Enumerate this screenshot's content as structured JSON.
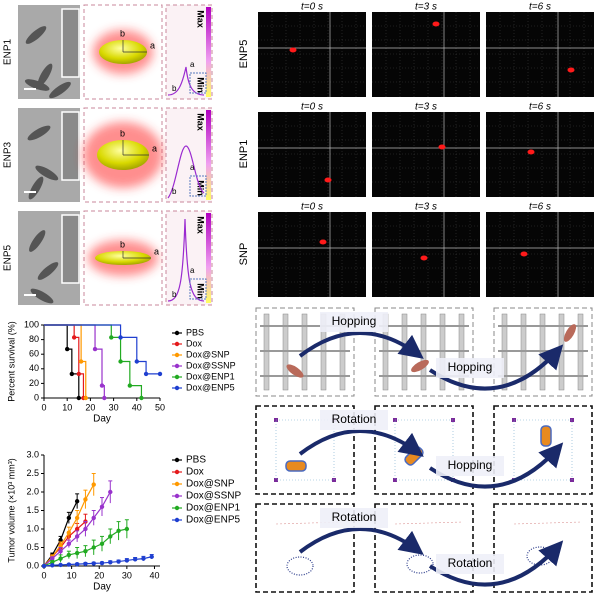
{
  "particles": {
    "rows": [
      "ENP1",
      "ENP3",
      "ENP5"
    ],
    "max": "Max",
    "min": "Min",
    "axis_a": "a",
    "axis_b": "b"
  },
  "tracking": {
    "rows": [
      "ENP5",
      "ENP1",
      "SNP"
    ],
    "times": [
      "t=0 s",
      "t=3 s",
      "t=6 s"
    ]
  },
  "mechanisms": [
    {
      "labels": [
        "Hopping",
        "Hopping"
      ]
    },
    {
      "labels": [
        "Rotation",
        "Hopping"
      ]
    },
    {
      "labels": [
        "Rotation",
        "Rotation"
      ]
    }
  ],
  "chart_data": [
    {
      "type": "step",
      "xlabel": "Day",
      "ylabel": "Percent survival (%)",
      "xlim": [
        0,
        50
      ],
      "xticks": [
        0,
        10,
        20,
        30,
        40,
        50
      ],
      "ylim": [
        0,
        100
      ],
      "yticks": [
        0,
        20,
        40,
        60,
        80,
        100
      ],
      "series": [
        {
          "name": "PBS",
          "color": "#000000",
          "x": [
            0,
            10,
            12,
            15
          ],
          "values": [
            100,
            67,
            33,
            0
          ]
        },
        {
          "name": "Dox",
          "color": "#e41a1c",
          "x": [
            0,
            13,
            15,
            17
          ],
          "values": [
            100,
            83,
            33,
            0
          ]
        },
        {
          "name": "Dox@SNP",
          "color": "#ff9900",
          "x": [
            0,
            16,
            18
          ],
          "values": [
            100,
            50,
            0
          ]
        },
        {
          "name": "Dox@SSNP",
          "color": "#9933cc",
          "x": [
            0,
            22,
            25,
            26
          ],
          "values": [
            100,
            67,
            17,
            0
          ]
        },
        {
          "name": "Dox@ENP1",
          "color": "#22aa22",
          "x": [
            0,
            29,
            33,
            37,
            42
          ],
          "values": [
            100,
            83,
            50,
            17,
            0
          ]
        },
        {
          "name": "Dox@ENP5",
          "color": "#1f3fd0",
          "x": [
            0,
            33,
            40,
            44,
            50
          ],
          "values": [
            100,
            83,
            50,
            33,
            33
          ]
        }
      ]
    },
    {
      "type": "line",
      "xlabel": "Day",
      "ylabel": "Tumor volume (×10³ mm³)",
      "xlim": [
        0,
        42
      ],
      "xticks": [
        0,
        10,
        20,
        30,
        40
      ],
      "ylim": [
        0,
        3
      ],
      "yticks": [
        {
          "value": 0,
          "label": "0.0"
        },
        0.5,
        {
          "value": 1,
          "label": "1.0"
        },
        1.5,
        {
          "value": 2,
          "label": "2.0"
        },
        2.5,
        {
          "value": 3,
          "label": "3.0"
        }
      ],
      "series": [
        {
          "name": "PBS",
          "color": "#000000",
          "x": [
            0,
            3,
            6,
            9,
            12
          ],
          "values": [
            0,
            0.3,
            0.7,
            1.3,
            1.75
          ],
          "errors": [
            0,
            0.05,
            0.1,
            0.15,
            0.2
          ]
        },
        {
          "name": "Dox",
          "color": "#e41a1c",
          "x": [
            0,
            3,
            6,
            9,
            12,
            15
          ],
          "values": [
            0,
            0.25,
            0.5,
            0.8,
            1.0,
            1.2
          ],
          "errors": [
            0,
            0.05,
            0.1,
            0.1,
            0.15,
            0.2
          ]
        },
        {
          "name": "Dox@SNP",
          "color": "#ff9900",
          "x": [
            0,
            3,
            6,
            9,
            12,
            15,
            18
          ],
          "values": [
            0,
            0.25,
            0.55,
            0.9,
            1.3,
            1.8,
            2.2
          ],
          "errors": [
            0,
            0.05,
            0.1,
            0.15,
            0.2,
            0.25,
            0.3
          ]
        },
        {
          "name": "Dox@SSNP",
          "color": "#9933cc",
          "x": [
            0,
            3,
            6,
            9,
            12,
            15,
            18,
            21,
            24
          ],
          "values": [
            0,
            0.2,
            0.4,
            0.6,
            0.8,
            1.0,
            1.3,
            1.6,
            2.0
          ],
          "errors": [
            0,
            0.05,
            0.1,
            0.1,
            0.15,
            0.2,
            0.2,
            0.25,
            0.3
          ]
        },
        {
          "name": "Dox@ENP1",
          "color": "#22aa22",
          "x": [
            0,
            3,
            6,
            9,
            12,
            15,
            18,
            21,
            24,
            27,
            30
          ],
          "values": [
            0,
            0.1,
            0.2,
            0.3,
            0.35,
            0.4,
            0.5,
            0.6,
            0.8,
            0.95,
            1.0
          ],
          "errors": [
            0,
            0.05,
            0.1,
            0.1,
            0.15,
            0.15,
            0.2,
            0.2,
            0.2,
            0.25,
            0.25
          ]
        },
        {
          "name": "Dox@ENP5",
          "color": "#1f3fd0",
          "x": [
            0,
            3,
            6,
            9,
            12,
            15,
            18,
            21,
            24,
            27,
            30,
            33,
            36,
            39
          ],
          "values": [
            0,
            0.02,
            0.03,
            0.04,
            0.05,
            0.06,
            0.07,
            0.08,
            0.1,
            0.12,
            0.15,
            0.18,
            0.2,
            0.25
          ],
          "errors": [
            0,
            0.01,
            0.01,
            0.02,
            0.02,
            0.03,
            0.03,
            0.03,
            0.04,
            0.04,
            0.05,
            0.05,
            0.06,
            0.06
          ]
        }
      ]
    }
  ]
}
